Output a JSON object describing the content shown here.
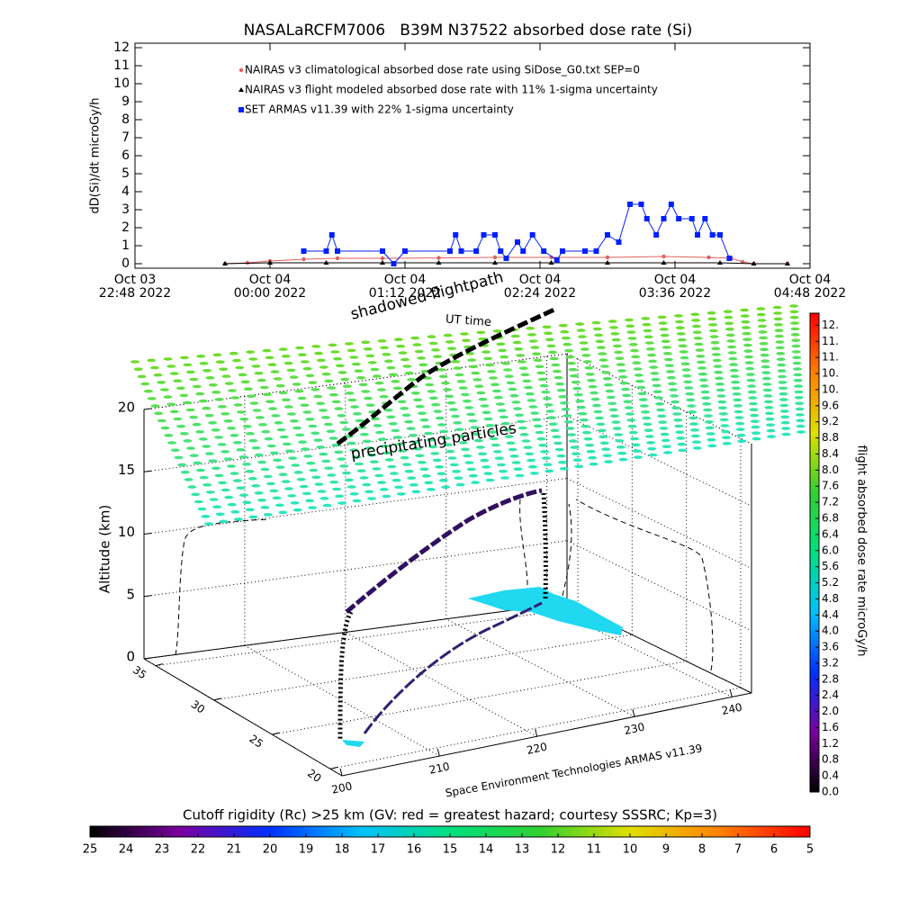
{
  "chart_data": [
    {
      "type": "line",
      "title": "NASALaRCFM7006   B39M N37522 absorbed dose rate (Si)",
      "ylabel": "dD(Si)/dt microGy/h",
      "xlim": [
        "2022-10-03 22:48",
        "2022-10-04 04:48"
      ],
      "xticks": [
        {
          "value": "2022-10-03 22:48",
          "label": "Oct 03\n22:48 2022"
        },
        {
          "value": "2022-10-04 00:00",
          "label": "Oct 04\n00:00 2022"
        },
        {
          "value": "2022-10-04 01:12",
          "label": "Oct 04\n01:12 2022"
        },
        {
          "value": "2022-10-04 02:24",
          "label": "Oct 04\n02:24 2022"
        },
        {
          "value": "2022-10-04 03:36",
          "label": "Oct 04\n03:36 2022"
        },
        {
          "value": "2022-10-04 04:48",
          "label": "Oct 04\n04:48 2022"
        }
      ],
      "ylim": [
        -0.25,
        12.25
      ],
      "yticks": [
        0,
        1,
        2,
        3,
        4,
        5,
        6,
        7,
        8,
        9,
        10,
        11,
        12
      ],
      "series": [
        {
          "name": "NAIRAS v3 climatological absorbed dose rate using SiDose_G0.txt SEP=0",
          "color": "#e06060",
          "marker": "circle",
          "x": [
            "2022-10-03 23:36",
            "2022-10-03 23:48",
            "2022-10-04 00:00",
            "2022-10-04 00:18",
            "2022-10-04 00:36",
            "2022-10-04 01:00",
            "2022-10-04 01:30",
            "2022-10-04 02:00",
            "2022-10-04 02:30",
            "2022-10-04 03:00",
            "2022-10-04 03:30",
            "2022-10-04 03:54",
            "2022-10-04 04:06",
            "2022-10-04 04:12",
            "2022-10-04 04:18",
            "2022-10-04 04:36"
          ],
          "values": [
            0,
            0.05,
            0.15,
            0.25,
            0.3,
            0.3,
            0.32,
            0.35,
            0.35,
            0.35,
            0.4,
            0.35,
            0.3,
            0.1,
            0,
            0
          ]
        },
        {
          "name": "NAIRAS v3 flight modeled absorbed dose rate with 11% 1-sigma uncertainty",
          "color": "#000000",
          "marker": "triangle",
          "x": [
            "2022-10-03 23:36",
            "2022-10-04 00:00",
            "2022-10-04 00:30",
            "2022-10-04 01:00",
            "2022-10-04 01:30",
            "2022-10-04 02:00",
            "2022-10-04 02:30",
            "2022-10-04 03:00",
            "2022-10-04 03:30",
            "2022-10-04 04:00",
            "2022-10-04 04:18",
            "2022-10-04 04:36"
          ],
          "values": [
            0,
            0.05,
            0.05,
            0.05,
            0.05,
            0.05,
            0.05,
            0.05,
            0.05,
            0.05,
            0,
            0
          ]
        },
        {
          "name": "SET ARMAS v11.39 with 22% 1-sigma uncertainty",
          "color": "#0020ff",
          "marker": "square",
          "x": [
            "2022-10-04 00:18",
            "2022-10-04 00:30",
            "2022-10-04 00:33",
            "2022-10-04 00:36",
            "2022-10-04 01:00",
            "2022-10-04 01:06",
            "2022-10-04 01:12",
            "2022-10-04 01:36",
            "2022-10-04 01:39",
            "2022-10-04 01:42",
            "2022-10-04 01:50",
            "2022-10-04 01:54",
            "2022-10-04 02:00",
            "2022-10-04 02:03",
            "2022-10-04 02:06",
            "2022-10-04 02:12",
            "2022-10-04 02:15",
            "2022-10-04 02:20",
            "2022-10-04 02:26",
            "2022-10-04 02:33",
            "2022-10-04 02:36",
            "2022-10-04 02:48",
            "2022-10-04 02:54",
            "2022-10-04 03:00",
            "2022-10-04 03:06",
            "2022-10-04 03:12",
            "2022-10-04 03:18",
            "2022-10-04 03:21",
            "2022-10-04 03:26",
            "2022-10-04 03:30",
            "2022-10-04 03:34",
            "2022-10-04 03:38",
            "2022-10-04 03:45",
            "2022-10-04 03:48",
            "2022-10-04 03:52",
            "2022-10-04 03:56",
            "2022-10-04 04:00",
            "2022-10-04 04:05"
          ],
          "values": [
            0.7,
            0.7,
            1.6,
            0.7,
            0.7,
            0,
            0.7,
            0.7,
            1.6,
            0.7,
            0.7,
            1.6,
            1.6,
            0.7,
            0.3,
            1.2,
            0.7,
            1.6,
            0.7,
            0.2,
            0.7,
            0.7,
            0.7,
            1.6,
            1.2,
            3.3,
            3.3,
            2.5,
            1.6,
            2.5,
            3.3,
            2.5,
            2.5,
            1.6,
            2.5,
            1.6,
            1.6,
            0.3
          ]
        }
      ]
    },
    {
      "type": "scatter3d",
      "zlabel": "Altitude (km)",
      "zlim": [
        0,
        20
      ],
      "zticks": [
        0,
        5,
        10,
        15,
        20
      ],
      "latlim": [
        19,
        36
      ],
      "latticks": [
        35,
        30,
        25,
        20
      ],
      "lonlim": [
        200,
        242
      ],
      "lonticks": [
        200,
        210,
        220,
        230,
        240
      ],
      "annotations": [
        "shadowed flightpath",
        "UT time",
        "precipitating particles",
        "Space Environment Technologies ARMAS v11.39"
      ]
    }
  ],
  "colorbars": [
    {
      "label": "flight absorbed dose rate microGy/h",
      "lim": [
        0,
        11.9
      ],
      "ticks": [
        {
          "value": 11.6,
          "label": "12."
        },
        {
          "value": 11.2,
          "label": "11."
        },
        {
          "value": 10.8,
          "label": "11."
        },
        {
          "value": 10.4,
          "label": "10."
        },
        {
          "value": 10,
          "label": "10."
        },
        9.6,
        9.2,
        8.8,
        8.4,
        {
          "value": 8,
          "label": "8.0"
        },
        7.6,
        7.2,
        6.8,
        6.4,
        {
          "value": 6,
          "label": "6.0"
        },
        5.6,
        5.2,
        4.8,
        4.4,
        {
          "value": 4,
          "label": "4.0"
        },
        3.6,
        3.2,
        2.8,
        2.4,
        {
          "value": 2,
          "label": "2.0"
        },
        1.6,
        1.2,
        0.8,
        0.4,
        {
          "value": 0,
          "label": "0.0"
        }
      ]
    },
    {
      "label": "Cutoff rigidity (Rc) >25 km (GV: red = greatest hazard; courtesy SSSRC; Kp=3)",
      "lim": [
        25,
        5
      ],
      "ticks": [
        25,
        24,
        23,
        22,
        21,
        20,
        19,
        18,
        17,
        16,
        15,
        14,
        13,
        12,
        11,
        10,
        9,
        8,
        7,
        6,
        5
      ]
    }
  ],
  "colors": [
    "#000000",
    "#7a00a0",
    "#0030ff",
    "#00c0ff",
    "#00e080",
    "#30d030",
    "#e0e000",
    "#ff8000",
    "#ff0000"
  ]
}
